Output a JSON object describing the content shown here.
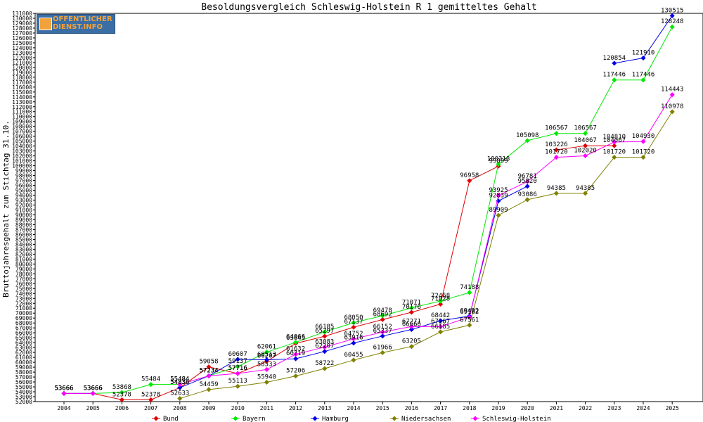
{
  "logo": {
    "line1": "OFFENTLICHER",
    "line2": "DIENST.INFO"
  },
  "chart_data": {
    "type": "line",
    "title": "Besoldungsvergleich Schleswig-Holstein R 1 gemitteltes Gehalt",
    "ylabel": "Bruttojahresgehalt zum Stichtag 31.10.",
    "xlabel": "",
    "ylim": [
      52000,
      131000
    ],
    "ytick_step": 1000,
    "grid": false,
    "legend": "bottom",
    "categories": [
      "2004",
      "2005",
      "2006",
      "2007",
      "2008",
      "2009",
      "2010",
      "2011",
      "2012",
      "2013",
      "2014",
      "2015",
      "2016",
      "2017",
      "2018",
      "2019",
      "2020",
      "2021",
      "2022",
      "2023",
      "2024",
      "2025"
    ],
    "series": [
      {
        "name": "Bund",
        "color": "#e00000",
        "values": [
          53666,
          53666,
          52378,
          52378,
          54836,
          59058,
          57716,
          60207,
          63845,
          65297,
          67137,
          68692,
          70176,
          71828,
          96958,
          99899,
          null,
          103226,
          104067,
          104067,
          null,
          null
        ]
      },
      {
        "name": "Bayern",
        "color": "#00e800",
        "values": [
          53666,
          53666,
          53868,
          55484,
          55484,
          57234,
          59137,
          62061,
          64066,
          66185,
          68050,
          69478,
          71071,
          72468,
          74188,
          100318,
          105098,
          106567,
          106567,
          117446,
          117446,
          128248
        ]
      },
      {
        "name": "Hamburg",
        "color": "#0000e8",
        "values": [
          53666,
          53666,
          null,
          null,
          54836,
          57234,
          60607,
          60513,
          60719,
          62207,
          63916,
          65337,
          66666,
          68442,
          69402,
          92839,
          95820,
          null,
          null,
          120854,
          121910,
          130515
        ]
      },
      {
        "name": "Niedersachsen",
        "color": "#808000",
        "values": [
          null,
          null,
          null,
          null,
          52633,
          54459,
          55113,
          55940,
          57206,
          58722,
          60455,
          61966,
          63205,
          66185,
          67561,
          89909,
          93086,
          94385,
          94385,
          101720,
          101720,
          110978
        ]
      },
      {
        "name": "Schleswig-Holstein",
        "color": "#ff00ff",
        "values": [
          53666,
          53666,
          null,
          null,
          55484,
          57234,
          57716,
          58533,
          61632,
          63083,
          64752,
          66152,
          67271,
          67267,
          69182,
          93925,
          96781,
          101720,
          102020,
          104810,
          104930,
          114443
        ]
      }
    ]
  }
}
